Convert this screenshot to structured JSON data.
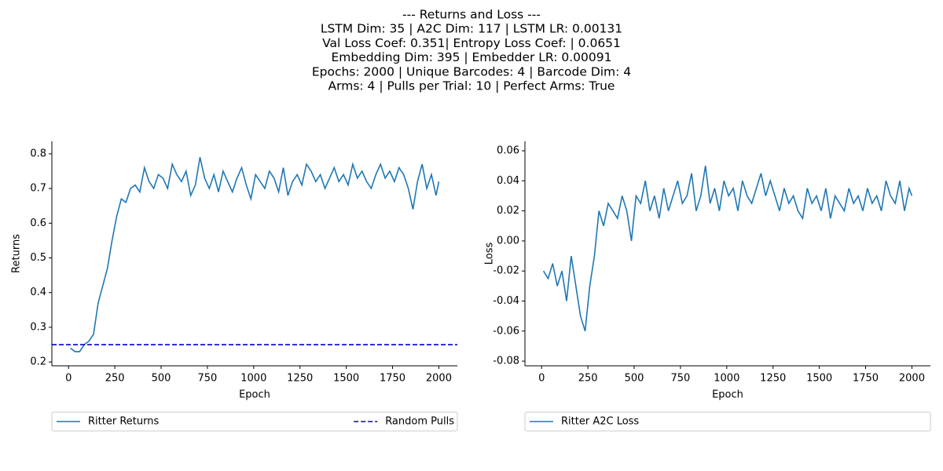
{
  "title": [
    "--- Returns and Loss ---",
    "LSTM Dim: 35 | A2C Dim: 117 | LSTM LR: 0.00131",
    "Val Loss Coef: 0.351| Entropy Loss Coef: | 0.0651",
    "Embedding Dim: 395 | Embedder LR: 0.00091",
    "Epochs: 2000 | Unique Barcodes: 4 | Barcode Dim: 4",
    "Arms: 4 | Pulls per Trial: 10 | Perfect Arms: True"
  ],
  "chart_data": [
    {
      "type": "line",
      "xlabel": "Epoch",
      "ylabel": "Returns",
      "x": [
        10,
        35,
        60,
        85,
        110,
        135,
        160,
        185,
        210,
        235,
        260,
        285,
        310,
        335,
        360,
        385,
        410,
        435,
        460,
        485,
        510,
        535,
        560,
        585,
        610,
        635,
        660,
        685,
        710,
        735,
        760,
        785,
        810,
        835,
        860,
        885,
        910,
        935,
        960,
        985,
        1010,
        1035,
        1060,
        1085,
        1110,
        1135,
        1160,
        1185,
        1210,
        1235,
        1260,
        1285,
        1310,
        1335,
        1360,
        1385,
        1410,
        1435,
        1460,
        1485,
        1510,
        1535,
        1560,
        1585,
        1610,
        1635,
        1660,
        1685,
        1710,
        1735,
        1760,
        1785,
        1810,
        1835,
        1860,
        1885,
        1910,
        1935,
        1960,
        1985,
        2000
      ],
      "series": [
        {
          "name": "Ritter Returns",
          "color": "#1f77b4",
          "values": [
            0.24,
            0.23,
            0.23,
            0.25,
            0.26,
            0.28,
            0.37,
            0.42,
            0.47,
            0.55,
            0.62,
            0.67,
            0.66,
            0.7,
            0.71,
            0.69,
            0.76,
            0.72,
            0.7,
            0.74,
            0.73,
            0.7,
            0.77,
            0.74,
            0.72,
            0.75,
            0.68,
            0.71,
            0.79,
            0.73,
            0.7,
            0.74,
            0.69,
            0.75,
            0.72,
            0.69,
            0.73,
            0.76,
            0.71,
            0.67,
            0.74,
            0.72,
            0.7,
            0.75,
            0.73,
            0.69,
            0.76,
            0.68,
            0.72,
            0.74,
            0.71,
            0.77,
            0.75,
            0.72,
            0.74,
            0.7,
            0.73,
            0.76,
            0.72,
            0.74,
            0.71,
            0.77,
            0.73,
            0.75,
            0.72,
            0.7,
            0.74,
            0.77,
            0.73,
            0.75,
            0.72,
            0.76,
            0.74,
            0.7,
            0.64,
            0.72,
            0.77,
            0.7,
            0.74,
            0.68,
            0.72
          ]
        },
        {
          "name": "Random Pulls",
          "color": "#0000cc",
          "dashed": true,
          "hline": 0.25
        }
      ],
      "xlim": [
        -90,
        2100
      ],
      "ylim": [
        0.189,
        0.836
      ],
      "xticks": [
        0,
        250,
        500,
        750,
        1000,
        1250,
        1500,
        1750,
        2000
      ],
      "yticks": [
        0.2,
        0.3,
        0.4,
        0.5,
        0.6,
        0.7,
        0.8
      ],
      "legend": "below"
    },
    {
      "type": "line",
      "xlabel": "Epoch",
      "ylabel": "Loss",
      "x": [
        10,
        35,
        60,
        85,
        110,
        135,
        160,
        185,
        210,
        235,
        260,
        285,
        310,
        335,
        360,
        385,
        410,
        435,
        460,
        485,
        510,
        535,
        560,
        585,
        610,
        635,
        660,
        685,
        710,
        735,
        760,
        785,
        810,
        835,
        860,
        885,
        910,
        935,
        960,
        985,
        1010,
        1035,
        1060,
        1085,
        1110,
        1135,
        1160,
        1185,
        1210,
        1235,
        1260,
        1285,
        1310,
        1335,
        1360,
        1385,
        1410,
        1435,
        1460,
        1485,
        1510,
        1535,
        1560,
        1585,
        1610,
        1635,
        1660,
        1685,
        1710,
        1735,
        1760,
        1785,
        1810,
        1835,
        1860,
        1885,
        1910,
        1935,
        1960,
        1985,
        2000
      ],
      "series": [
        {
          "name": "Ritter A2C Loss",
          "color": "#1f77b4",
          "values": [
            -0.02,
            -0.025,
            -0.015,
            -0.03,
            -0.02,
            -0.04,
            -0.01,
            -0.03,
            -0.05,
            -0.06,
            -0.03,
            -0.01,
            0.02,
            0.01,
            0.025,
            0.02,
            0.015,
            0.03,
            0.02,
            0.0,
            0.03,
            0.025,
            0.04,
            0.02,
            0.03,
            0.015,
            0.035,
            0.02,
            0.03,
            0.04,
            0.025,
            0.03,
            0.045,
            0.02,
            0.03,
            0.05,
            0.025,
            0.035,
            0.02,
            0.04,
            0.03,
            0.035,
            0.02,
            0.04,
            0.03,
            0.025,
            0.035,
            0.045,
            0.03,
            0.04,
            0.03,
            0.02,
            0.035,
            0.025,
            0.03,
            0.02,
            0.015,
            0.035,
            0.025,
            0.03,
            0.02,
            0.035,
            0.015,
            0.03,
            0.025,
            0.02,
            0.035,
            0.025,
            0.03,
            0.02,
            0.035,
            0.025,
            0.03,
            0.02,
            0.04,
            0.03,
            0.025,
            0.04,
            0.02,
            0.035,
            0.03
          ]
        }
      ],
      "xlim": [
        -90,
        2100
      ],
      "ylim": [
        -0.0831,
        0.0663
      ],
      "xticks": [
        0,
        250,
        500,
        750,
        1000,
        1250,
        1500,
        1750,
        2000
      ],
      "yticks": [
        -0.08,
        -0.06,
        -0.04,
        -0.02,
        {
          "value": 0,
          "label": "0.00"
        },
        0.02,
        0.04,
        0.06
      ],
      "legend": "below"
    }
  ]
}
